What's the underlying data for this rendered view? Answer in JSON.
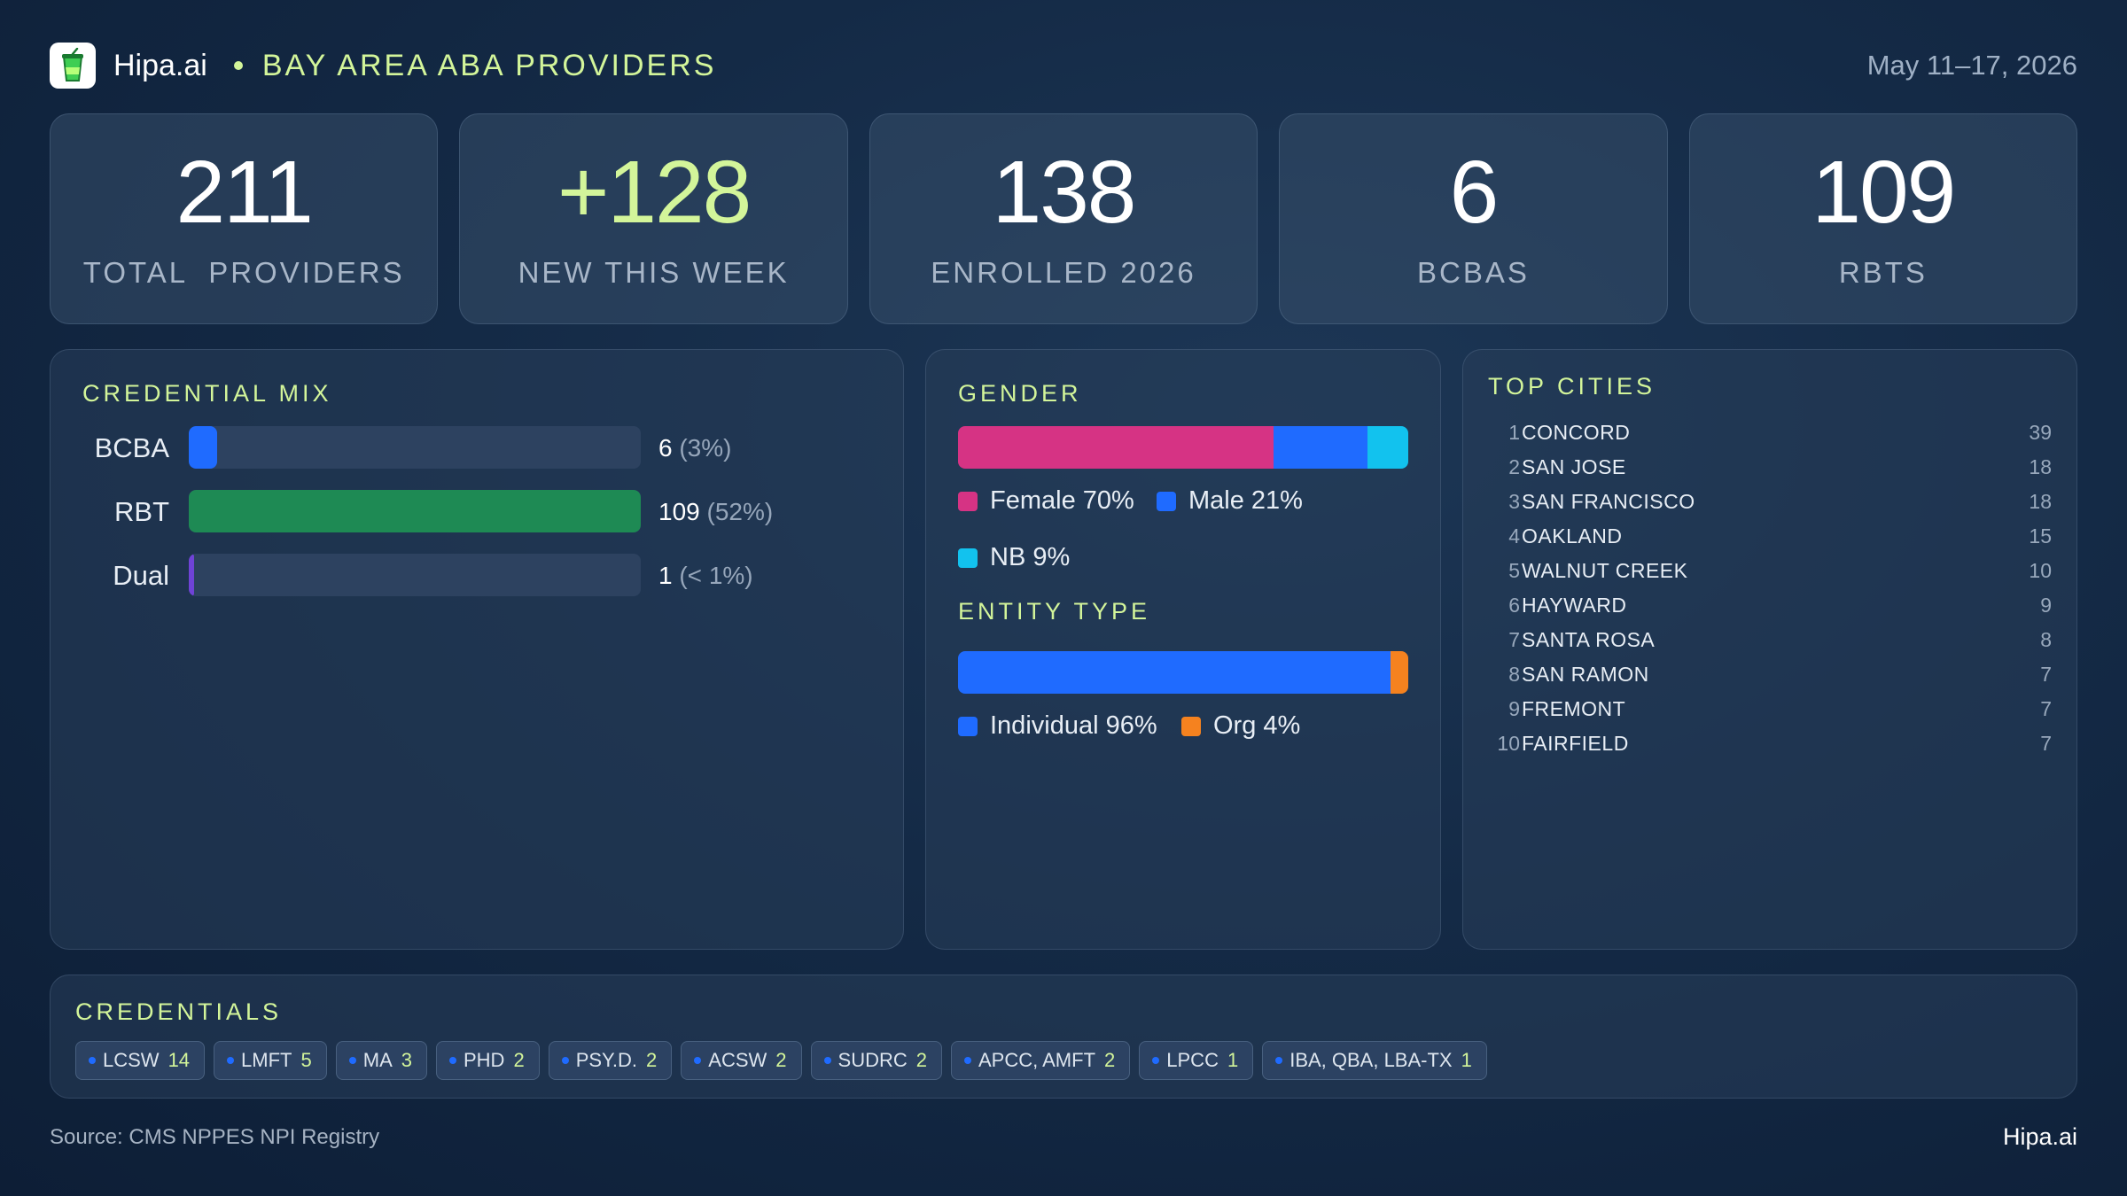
{
  "header": {
    "brand": "Hipa.ai",
    "title": "BAY AREA ABA PROVIDERS",
    "date": "May 11–17, 2026",
    "logo_icon": "cup-icon"
  },
  "stats": [
    {
      "value": "211",
      "label": "TOTAL  PROVIDERS",
      "color": "#ffffff"
    },
    {
      "value": "+128",
      "label": "NEW THIS WEEK",
      "color": "#d3f59a"
    },
    {
      "value": "138",
      "label": "ENROLLED 2026",
      "color": "#ffffff"
    },
    {
      "value": "6",
      "label": "BCBAS",
      "color": "#ffffff"
    },
    {
      "value": "109",
      "label": "RBTS",
      "color": "#ffffff"
    }
  ],
  "credential_mix": {
    "title": "CREDENTIAL MIX"
  },
  "gender": {
    "title": "GENDER"
  },
  "entity_type": {
    "title": "ENTITY TYPE"
  },
  "top_cities": {
    "title": "TOP CITIES",
    "rows": [
      {
        "rank": "1",
        "name": "CONCORD",
        "count": "39"
      },
      {
        "rank": "2",
        "name": "SAN JOSE",
        "count": "18"
      },
      {
        "rank": "3",
        "name": "SAN FRANCISCO",
        "count": "18"
      },
      {
        "rank": "4",
        "name": "OAKLAND",
        "count": "15"
      },
      {
        "rank": "5",
        "name": "WALNUT CREEK",
        "count": "10"
      },
      {
        "rank": "6",
        "name": "HAYWARD",
        "count": "9"
      },
      {
        "rank": "7",
        "name": "SANTA ROSA",
        "count": "8"
      },
      {
        "rank": "8",
        "name": "SAN RAMON",
        "count": "7"
      },
      {
        "rank": "9",
        "name": "FREMONT",
        "count": "7"
      },
      {
        "rank": "10",
        "name": "FAIRFIELD",
        "count": "7"
      }
    ]
  },
  "credentials": {
    "title": "CREDENTIALS",
    "items": [
      {
        "name": "LCSW",
        "count": "14"
      },
      {
        "name": "LMFT",
        "count": "5"
      },
      {
        "name": "MA",
        "count": "3"
      },
      {
        "name": "PHD",
        "count": "2"
      },
      {
        "name": "PSY.D.",
        "count": "2"
      },
      {
        "name": "ACSW",
        "count": "2"
      },
      {
        "name": "SUDRC",
        "count": "2"
      },
      {
        "name": "APCC, AMFT",
        "count": "2"
      },
      {
        "name": "LPCC",
        "count": "1"
      },
      {
        "name": "IBA, QBA, LBA-TX",
        "count": "1"
      }
    ]
  },
  "footer": {
    "source": "Source: CMS NPPES NPI Registry",
    "brand": "Hipa.ai"
  },
  "chart_data": [
    {
      "type": "bar",
      "title": "CREDENTIAL MIX",
      "categories": [
        "BCBA",
        "RBT",
        "Dual"
      ],
      "values": [
        6,
        109,
        1
      ],
      "value_labels": [
        "6",
        "109",
        "1"
      ],
      "pct_labels": [
        "(3%)",
        "(52%)",
        "(< 1%)"
      ],
      "max": 109,
      "colors": [
        "#1f6bff",
        "#1e8a54",
        "#6f43d6"
      ]
    },
    {
      "type": "bar",
      "title": "GENDER",
      "stacked": true,
      "series": [
        {
          "name": "Female",
          "label": "Female 70%",
          "value": 70,
          "color": "#d63384"
        },
        {
          "name": "Male",
          "label": "Male 21%",
          "value": 21,
          "color": "#1f6bff"
        },
        {
          "name": "NB",
          "label": "NB 9%",
          "value": 9,
          "color": "#12c2ee"
        }
      ]
    },
    {
      "type": "bar",
      "title": "ENTITY TYPE",
      "stacked": true,
      "series": [
        {
          "name": "Individual",
          "label": "Individual 96%",
          "value": 96,
          "color": "#1f6bff"
        },
        {
          "name": "Org",
          "label": "Org 4%",
          "value": 4,
          "color": "#f5821f"
        }
      ]
    }
  ]
}
